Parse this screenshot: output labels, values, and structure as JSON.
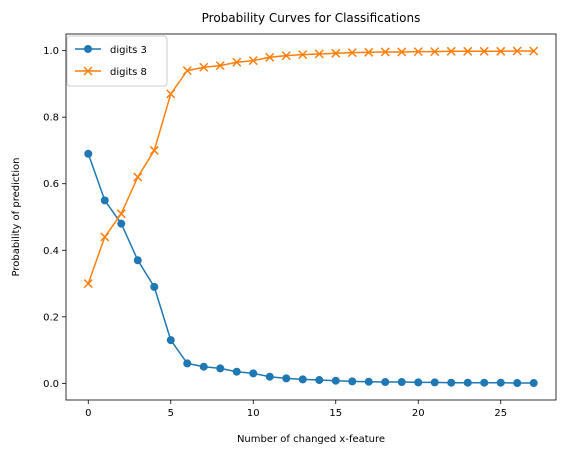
{
  "chart_data": {
    "type": "line",
    "title": "Probability Curves for Classifications",
    "xlabel": "Number of changed x-feature",
    "ylabel": "Probability of prediction",
    "xlim": [
      -1.35,
      28.35
    ],
    "ylim": [
      -0.05,
      1.05
    ],
    "xticks": [
      0,
      5,
      10,
      15,
      20,
      25
    ],
    "xtick_labels": [
      "0",
      "5",
      "10",
      "15",
      "20",
      "25"
    ],
    "yticks": [
      0.0,
      0.2,
      0.4,
      0.6,
      0.8,
      1.0
    ],
    "ytick_labels": [
      "0.0",
      "0.2",
      "0.4",
      "0.6",
      "0.8",
      "1.0"
    ],
    "grid": false,
    "legend_position": "upper-left",
    "x": [
      0,
      1,
      2,
      3,
      4,
      5,
      6,
      7,
      8,
      9,
      10,
      11,
      12,
      13,
      14,
      15,
      16,
      17,
      18,
      19,
      20,
      21,
      22,
      23,
      24,
      25,
      26,
      27
    ],
    "series": [
      {
        "name": "digits 3",
        "color": "#1f77b4",
        "marker": "circle",
        "values": [
          0.69,
          0.55,
          0.48,
          0.37,
          0.29,
          0.13,
          0.06,
          0.05,
          0.045,
          0.035,
          0.03,
          0.02,
          0.015,
          0.012,
          0.01,
          0.008,
          0.006,
          0.005,
          0.004,
          0.004,
          0.003,
          0.003,
          0.002,
          0.002,
          0.002,
          0.002,
          0.001,
          0.001
        ]
      },
      {
        "name": "digits 8",
        "color": "#ff7f0e",
        "marker": "x",
        "values": [
          0.3,
          0.44,
          0.51,
          0.62,
          0.7,
          0.87,
          0.94,
          0.95,
          0.955,
          0.965,
          0.97,
          0.98,
          0.985,
          0.988,
          0.99,
          0.992,
          0.994,
          0.995,
          0.996,
          0.996,
          0.997,
          0.997,
          0.998,
          0.998,
          0.998,
          0.998,
          0.999,
          0.999
        ]
      }
    ]
  }
}
